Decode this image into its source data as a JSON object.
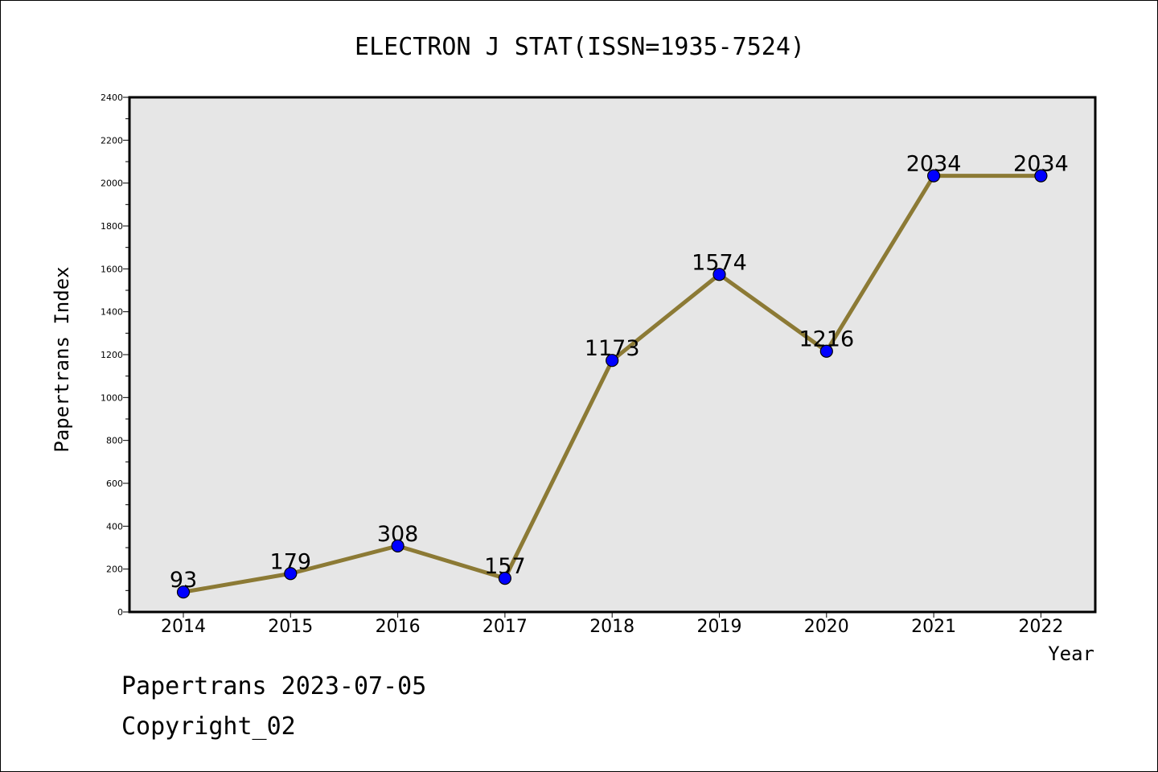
{
  "chart_data": {
    "type": "line",
    "title": "ELECTRON J STAT(ISSN=1935-7524)",
    "xlabel": "Year",
    "ylabel": "Papertrans Index",
    "categories": [
      "2014",
      "2015",
      "2016",
      "2017",
      "2018",
      "2019",
      "2020",
      "2021",
      "2022"
    ],
    "series": [
      {
        "values": [
          93,
          179,
          308,
          157,
          1173,
          1574,
          1216,
          2034,
          2034
        ]
      }
    ],
    "data_labels": [
      "93",
      "179",
      "308",
      "157",
      "1173",
      "1574",
      "1216",
      "2034",
      "2034"
    ],
    "ylim": [
      0,
      2400
    ],
    "yticks": [
      0,
      200,
      400,
      600,
      800,
      1000,
      1200,
      1400,
      1600,
      1800,
      2000,
      2200,
      2400
    ],
    "grid": false,
    "legend": "none",
    "colors": {
      "line": "#8c7a35",
      "marker": "#0000ff",
      "plot_background": "#e6e6e6"
    }
  },
  "footer": {
    "source": "Papertrans 2023-07-05",
    "copyright": "Copyright_02"
  }
}
